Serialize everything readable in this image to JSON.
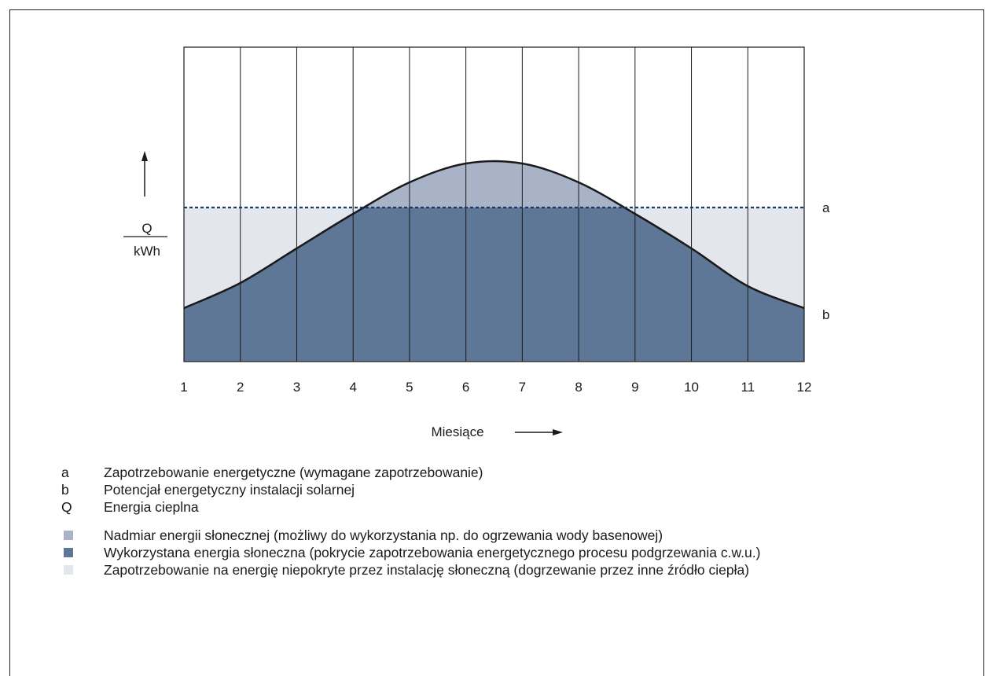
{
  "chart_data": {
    "type": "area",
    "xlabel": "Miesiące",
    "ylabel": {
      "numerator": "Q",
      "denominator": "kWh"
    },
    "x": [
      1,
      2,
      3,
      4,
      5,
      6,
      7,
      8,
      9,
      10,
      11,
      12
    ],
    "xlim": [
      1,
      12
    ],
    "ylim": [
      0,
      100
    ],
    "grid": {
      "vertical": true,
      "horizontal": false
    },
    "series": [
      {
        "name": "b",
        "values": [
          17,
          25,
          36,
          47,
          57,
          63,
          63,
          57,
          47,
          36,
          24,
          17
        ]
      }
    ],
    "demand_line": {
      "name": "a",
      "value": 49
    },
    "colors": {
      "excess": "#a9b3c8",
      "used": "#5f7796",
      "unmet": "#e4e6ed",
      "demand_line": "#1b3a66",
      "curve": "#1a1a1a"
    }
  },
  "legend": {
    "definitions": [
      {
        "key": "a",
        "text": "Zapotrzebowanie energetyczne (wymagane zapotrzebowanie)"
      },
      {
        "key": "b",
        "text": "Potencjał energetyczny instalacji solarnej"
      },
      {
        "key": "Q",
        "text": "Energia cieplna"
      }
    ],
    "areas": [
      {
        "color": "#a9b3c8",
        "text": "Nadmiar energii słonecznej (możliwy do wykorzystania np. do ogrzewania wody basenowej)"
      },
      {
        "color": "#5f7796",
        "text": "Wykorzystana energia słoneczna (pokrycie zapotrzebowania energetycznego procesu podgrzewania c.w.u.)"
      },
      {
        "color": "#e4e6ed",
        "text": "Zapotrzebowanie na energię niepokryte przez instalację słoneczną (dogrzewanie przez inne źródło ciepła)"
      }
    ]
  }
}
